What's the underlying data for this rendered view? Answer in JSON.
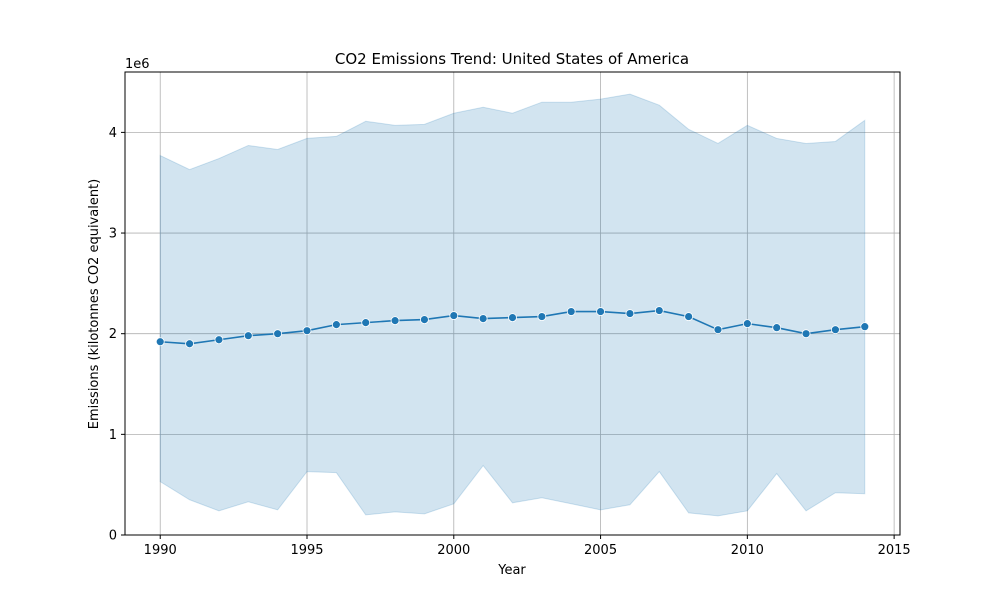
{
  "chart_data": {
    "type": "line",
    "title": "CO2 Emissions Trend: United States of America",
    "xlabel": "Year",
    "ylabel": "Emissions (kilotonnes CO2 equivalent)",
    "y_offset_label": "1e6",
    "xlim": [
      1988.8,
      2015.2
    ],
    "ylim": [
      0,
      4.6
    ],
    "xticks": [
      1990,
      1995,
      2000,
      2005,
      2010,
      2015
    ],
    "yticks": [
      0,
      1,
      2,
      3,
      4
    ],
    "grid": true,
    "colors": {
      "line": "#1f77b4",
      "band": "#1f77b4",
      "grid": "#b0b0b0"
    },
    "x": [
      1990,
      1991,
      1992,
      1993,
      1994,
      1995,
      1996,
      1997,
      1998,
      1999,
      2000,
      2001,
      2002,
      2003,
      2004,
      2005,
      2006,
      2007,
      2008,
      2009,
      2010,
      2011,
      2012,
      2013,
      2014
    ],
    "series": [
      {
        "values": [
          1.92,
          1.9,
          1.94,
          1.98,
          2.0,
          2.03,
          2.09,
          2.11,
          2.13,
          2.14,
          2.18,
          2.15,
          2.16,
          2.17,
          2.22,
          2.22,
          2.2,
          2.23,
          2.17,
          2.04,
          2.1,
          2.06,
          2.0,
          2.04,
          2.07
        ],
        "upper": [
          3.77,
          3.63,
          3.74,
          3.87,
          3.83,
          3.94,
          3.96,
          4.11,
          4.07,
          4.08,
          4.19,
          4.25,
          4.19,
          4.3,
          4.3,
          4.33,
          4.38,
          4.27,
          4.03,
          3.89,
          4.07,
          3.94,
          3.89,
          3.91,
          4.12
        ],
        "lower": [
          0.53,
          0.35,
          0.24,
          0.33,
          0.25,
          0.63,
          0.62,
          0.2,
          0.23,
          0.21,
          0.31,
          0.69,
          0.32,
          0.37,
          0.31,
          0.25,
          0.3,
          0.63,
          0.22,
          0.19,
          0.24,
          0.61,
          0.24,
          0.42,
          0.41
        ]
      }
    ]
  }
}
